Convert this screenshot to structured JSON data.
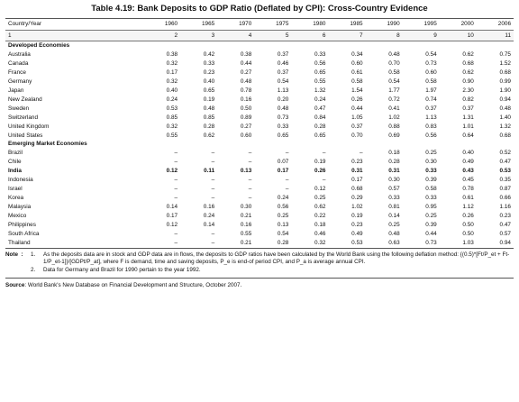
{
  "title": "Table 4.19: Bank Deposits to GDP Ratio (Deflated by CPI): Cross-Country Evidence",
  "columns": [
    "Country/Year",
    "1960",
    "1965",
    "1970",
    "1975",
    "1980",
    "1985",
    "1990",
    "1995",
    "2000",
    "2006"
  ],
  "col_index": [
    "1",
    "2",
    "3",
    "4",
    "5",
    "6",
    "7",
    "8",
    "9",
    "10",
    "11"
  ],
  "rows": [
    {
      "type": "section",
      "label": "Developed Economies",
      "values": []
    },
    {
      "type": "data",
      "label": "Australia",
      "values": [
        "0.38",
        "0.42",
        "0.38",
        "0.37",
        "0.33",
        "0.34",
        "0.48",
        "0.54",
        "0.62",
        "0.75"
      ]
    },
    {
      "type": "data",
      "label": "Canada",
      "values": [
        "0.32",
        "0.33",
        "0.44",
        "0.46",
        "0.56",
        "0.60",
        "0.70",
        "0.73",
        "0.68",
        "1.52"
      ]
    },
    {
      "type": "data",
      "label": "France",
      "values": [
        "0.17",
        "0.23",
        "0.27",
        "0.37",
        "0.65",
        "0.61",
        "0.58",
        "0.60",
        "0.62",
        "0.68"
      ]
    },
    {
      "type": "data",
      "label": "Germany",
      "values": [
        "0.32",
        "0.40",
        "0.48",
        "0.54",
        "0.55",
        "0.58",
        "0.54",
        "0.58",
        "0.90",
        "0.99"
      ]
    },
    {
      "type": "data",
      "label": "Japan",
      "values": [
        "0.40",
        "0.65",
        "0.78",
        "1.13",
        "1.32",
        "1.54",
        "1.77",
        "1.97",
        "2.30",
        "1.90"
      ]
    },
    {
      "type": "data",
      "label": "New Zealand",
      "values": [
        "0.24",
        "0.19",
        "0.16",
        "0.20",
        "0.24",
        "0.26",
        "0.72",
        "0.74",
        "0.82",
        "0.94"
      ]
    },
    {
      "type": "data",
      "label": "Sweden",
      "values": [
        "0.53",
        "0.48",
        "0.50",
        "0.48",
        "0.47",
        "0.44",
        "0.41",
        "0.37",
        "0.37",
        "0.48"
      ]
    },
    {
      "type": "data",
      "label": "Switzerland",
      "values": [
        "0.85",
        "0.85",
        "0.89",
        "0.73",
        "0.84",
        "1.05",
        "1.02",
        "1.13",
        "1.31",
        "1.40"
      ]
    },
    {
      "type": "data",
      "label": "United Kingdom",
      "values": [
        "0.32",
        "0.28",
        "0.27",
        "0.33",
        "0.28",
        "0.37",
        "0.88",
        "0.83",
        "1.01",
        "1.32"
      ]
    },
    {
      "type": "data",
      "label": "United States",
      "values": [
        "0.55",
        "0.62",
        "0.60",
        "0.65",
        "0.65",
        "0.70",
        "0.69",
        "0.56",
        "0.64",
        "0.68"
      ]
    },
    {
      "type": "section",
      "label": "Emerging Market Economies",
      "values": []
    },
    {
      "type": "data",
      "label": "Brazil",
      "values": [
        "–",
        "–",
        "–",
        "–",
        "–",
        "–",
        "0.18",
        "0.25",
        "0.40",
        "0.52"
      ]
    },
    {
      "type": "data",
      "label": "Chile",
      "values": [
        "–",
        "–",
        "–",
        "0.07",
        "0.19",
        "0.23",
        "0.28",
        "0.30",
        "0.49",
        "0.47"
      ]
    },
    {
      "type": "bold",
      "label": "India",
      "values": [
        "0.12",
        "0.11",
        "0.13",
        "0.17",
        "0.26",
        "0.31",
        "0.31",
        "0.33",
        "0.43",
        "0.53"
      ]
    },
    {
      "type": "data",
      "label": "Indonesia",
      "values": [
        "–",
        "–",
        "–",
        "–",
        "–",
        "0.17",
        "0.30",
        "0.39",
        "0.45",
        "0.35"
      ]
    },
    {
      "type": "data",
      "label": "Israel",
      "values": [
        "–",
        "–",
        "–",
        "–",
        "0.12",
        "0.68",
        "0.57",
        "0.58",
        "0.78",
        "0.87"
      ]
    },
    {
      "type": "data",
      "label": "Korea",
      "values": [
        "–",
        "–",
        "–",
        "0.24",
        "0.25",
        "0.29",
        "0.33",
        "0.33",
        "0.61",
        "0.66"
      ]
    },
    {
      "type": "data",
      "label": "Malaysia",
      "values": [
        "0.14",
        "0.16",
        "0.30",
        "0.56",
        "0.62",
        "1.02",
        "0.81",
        "0.95",
        "1.12",
        "1.16"
      ]
    },
    {
      "type": "data",
      "label": "Mexico",
      "values": [
        "0.17",
        "0.24",
        "0.21",
        "0.25",
        "0.22",
        "0.19",
        "0.14",
        "0.25",
        "0.26",
        "0.23"
      ]
    },
    {
      "type": "data",
      "label": "Philippines",
      "values": [
        "0.12",
        "0.14",
        "0.16",
        "0.13",
        "0.18",
        "0.23",
        "0.25",
        "0.39",
        "0.50",
        "0.47"
      ]
    },
    {
      "type": "data",
      "label": "South Africa",
      "values": [
        "–",
        "–",
        "0.55",
        "0.54",
        "0.46",
        "0.49",
        "0.48",
        "0.44",
        "0.50",
        "0.57"
      ]
    },
    {
      "type": "data",
      "label": "Thailand",
      "values": [
        "–",
        "–",
        "0.21",
        "0.28",
        "0.32",
        "0.53",
        "0.63",
        "0.73",
        "1.03",
        "0.94"
      ]
    }
  ],
  "notes": {
    "heading": "Note",
    "separator": ":",
    "items": [
      {
        "num": "1.",
        "text": "As the deposits data are in stock and GDP data are in flows, the deposits to GDP ratios have been calculated by the World Bank using the following deflation method: {(0.5)*[Ft/P_et + Ft-1/P_et-1]}/[GDPt/P_at], where F is demand, time and saving deposits, P_e is end-of period CPI, and P_a is average annual CPI."
      },
      {
        "num": "2.",
        "text": "Data for Germany and Brazil for 1990 pertain to the year 1992."
      }
    ]
  },
  "source": {
    "label": "Source",
    "text": ": World Bank's New Database on Financial Development and Structure, October 2007."
  }
}
